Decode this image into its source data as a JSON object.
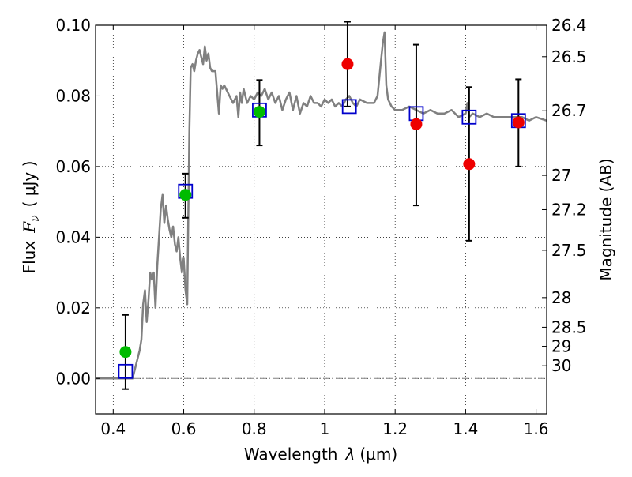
{
  "chart_data": {
    "type": "scatter",
    "xlabel": "Wavelength λ (μm)",
    "ylabel": "Flux F_ν ( μJy )",
    "ylabel_parts": {
      "prefix": "Flux",
      "symbol": "F",
      "subscript": "ν",
      "unit": "( μJy )"
    },
    "xlabel_parts": {
      "prefix": "Wavelength",
      "symbol": "λ",
      "unit": "(μm)"
    },
    "y2label": "Magnitude (AB)",
    "xlim": [
      0.35,
      1.63
    ],
    "ylim": [
      -0.01,
      0.1
    ],
    "grid": true,
    "x_ticks": [
      {
        "value": 0.4,
        "label": "0.4"
      },
      {
        "value": 0.6,
        "label": "0.6"
      },
      {
        "value": 0.8,
        "label": "0.8"
      },
      {
        "value": 1.0,
        "label": "1"
      },
      {
        "value": 1.2,
        "label": "1.2"
      },
      {
        "value": 1.4,
        "label": "1.4"
      },
      {
        "value": 1.6,
        "label": "1.6"
      }
    ],
    "y_ticks": [
      {
        "value": 0.0,
        "label": "0.00"
      },
      {
        "value": 0.02,
        "label": "0.02"
      },
      {
        "value": 0.04,
        "label": "0.04"
      },
      {
        "value": 0.06,
        "label": "0.06"
      },
      {
        "value": 0.08,
        "label": "0.08"
      },
      {
        "value": 0.1,
        "label": "0.10"
      }
    ],
    "mag_ticks": [
      {
        "flux": 0.1,
        "label": "26.4"
      },
      {
        "flux": 0.0911,
        "label": "26.5"
      },
      {
        "flux": 0.0758,
        "label": "26.7"
      },
      {
        "flux": 0.0575,
        "label": "27"
      },
      {
        "flux": 0.0478,
        "label": "27.2"
      },
      {
        "flux": 0.0363,
        "label": "27.5"
      },
      {
        "flux": 0.0229,
        "label": "28"
      },
      {
        "flux": 0.0145,
        "label": "28.5"
      },
      {
        "flux": 0.0091,
        "label": "29"
      },
      {
        "flux": 0.0036,
        "label": "30"
      }
    ],
    "series": [
      {
        "name": "model_spectrum",
        "kind": "line",
        "color": "#808080",
        "x": [
          0.35,
          0.44,
          0.455,
          0.465,
          0.475,
          0.48,
          0.485,
          0.49,
          0.495,
          0.5,
          0.505,
          0.51,
          0.515,
          0.52,
          0.525,
          0.53,
          0.535,
          0.54,
          0.545,
          0.55,
          0.555,
          0.56,
          0.565,
          0.57,
          0.575,
          0.58,
          0.585,
          0.59,
          0.595,
          0.6,
          0.605,
          0.61,
          0.613,
          0.616,
          0.62,
          0.625,
          0.63,
          0.635,
          0.64,
          0.645,
          0.65,
          0.655,
          0.66,
          0.665,
          0.67,
          0.675,
          0.68,
          0.69,
          0.7,
          0.705,
          0.71,
          0.715,
          0.72,
          0.73,
          0.74,
          0.75,
          0.755,
          0.76,
          0.765,
          0.77,
          0.78,
          0.79,
          0.8,
          0.81,
          0.82,
          0.83,
          0.84,
          0.85,
          0.86,
          0.87,
          0.88,
          0.89,
          0.9,
          0.91,
          0.92,
          0.93,
          0.94,
          0.95,
          0.96,
          0.97,
          0.98,
          0.99,
          1.0,
          1.01,
          1.02,
          1.03,
          1.04,
          1.05,
          1.06,
          1.07,
          1.08,
          1.09,
          1.1,
          1.12,
          1.14,
          1.15,
          1.16,
          1.165,
          1.17,
          1.175,
          1.18,
          1.19,
          1.2,
          1.22,
          1.24,
          1.26,
          1.28,
          1.3,
          1.32,
          1.34,
          1.36,
          1.38,
          1.4,
          1.405,
          1.41,
          1.42,
          1.44,
          1.46,
          1.48,
          1.5,
          1.52,
          1.54,
          1.56,
          1.58,
          1.6,
          1.63
        ],
        "y": [
          0.0,
          0.0,
          0.0,
          0.004,
          0.008,
          0.011,
          0.021,
          0.025,
          0.016,
          0.022,
          0.03,
          0.028,
          0.03,
          0.02,
          0.032,
          0.04,
          0.048,
          0.052,
          0.044,
          0.049,
          0.045,
          0.042,
          0.04,
          0.043,
          0.038,
          0.036,
          0.04,
          0.034,
          0.03,
          0.034,
          0.025,
          0.021,
          0.045,
          0.07,
          0.088,
          0.089,
          0.087,
          0.09,
          0.092,
          0.093,
          0.091,
          0.089,
          0.094,
          0.09,
          0.092,
          0.088,
          0.087,
          0.087,
          0.075,
          0.083,
          0.082,
          0.083,
          0.082,
          0.08,
          0.078,
          0.08,
          0.074,
          0.081,
          0.078,
          0.082,
          0.078,
          0.08,
          0.079,
          0.081,
          0.08,
          0.082,
          0.079,
          0.081,
          0.078,
          0.08,
          0.076,
          0.079,
          0.081,
          0.076,
          0.08,
          0.075,
          0.078,
          0.077,
          0.08,
          0.078,
          0.078,
          0.077,
          0.079,
          0.078,
          0.079,
          0.077,
          0.078,
          0.077,
          0.079,
          0.08,
          0.078,
          0.077,
          0.079,
          0.078,
          0.078,
          0.08,
          0.09,
          0.095,
          0.098,
          0.083,
          0.079,
          0.077,
          0.076,
          0.076,
          0.077,
          0.076,
          0.075,
          0.076,
          0.075,
          0.075,
          0.076,
          0.074,
          0.075,
          0.078,
          0.074,
          0.075,
          0.074,
          0.075,
          0.074,
          0.074,
          0.074,
          0.074,
          0.074,
          0.073,
          0.074,
          0.073
        ]
      },
      {
        "name": "model_photometry",
        "kind": "open-square",
        "color": "#0000cc",
        "x": [
          0.435,
          0.605,
          0.815,
          1.07,
          1.26,
          1.41,
          1.55
        ],
        "y": [
          0.002,
          0.053,
          0.076,
          0.077,
          0.075,
          0.074,
          0.073
        ]
      },
      {
        "name": "observed_optical",
        "kind": "filled-circle",
        "color": "#00bb00",
        "x": [
          0.435,
          0.605,
          0.815
        ],
        "y": [
          0.0075,
          0.052,
          0.0755
        ]
      },
      {
        "name": "observed_nir",
        "kind": "filled-circle",
        "color": "#ee0000",
        "x": [
          1.065,
          1.26,
          1.41,
          1.55
        ],
        "y": [
          0.089,
          0.072,
          0.0607,
          0.0725
        ]
      },
      {
        "name": "error_bars",
        "kind": "errorbar",
        "color": "#000000",
        "x": [
          0.435,
          0.605,
          0.815,
          1.065,
          1.26,
          1.41,
          1.55
        ],
        "ylow": [
          -0.003,
          0.0455,
          0.066,
          0.077,
          0.049,
          0.039,
          0.06
        ],
        "yhigh": [
          0.018,
          0.058,
          0.0845,
          0.101,
          0.0945,
          0.0825,
          0.0847
        ]
      }
    ],
    "reference_lines": [
      {
        "name": "zero_flux_line",
        "y": 0.0,
        "style": "dash-dot",
        "color": "#808080"
      }
    ]
  }
}
